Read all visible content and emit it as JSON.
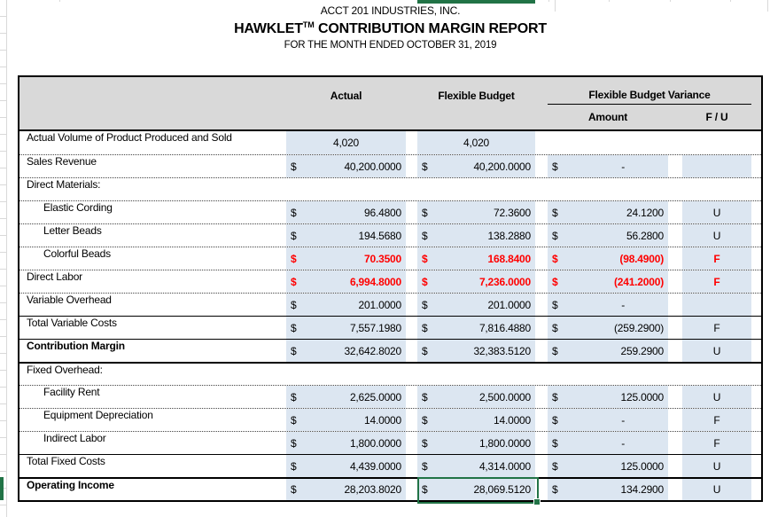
{
  "title_block": {
    "company": "ACCT 201 INDUSTRIES, INC.",
    "product": "HAWKLET",
    "trademark": "TM",
    "report_suffix": " CONTRIBUTION MARGIN REPORT",
    "period": "FOR THE MONTH ENDED OCTOBER 31, 2019"
  },
  "table_header": {
    "actual": "Actual",
    "flexible_budget": "Flexible Budget",
    "variance_group": "Flexible Budget Variance",
    "amount": "Amount",
    "f_u": "F / U"
  },
  "colors": {
    "header_fill": "#D9D9D9",
    "cell_fill": "#DCE6F1",
    "unfavorable_red": "#FF0000",
    "excel_selection_green": "#217346"
  },
  "selection": {
    "selected_row": "operating-income",
    "selected_column": "flexible-budget",
    "selected_value": "28,069.5120"
  },
  "rows": [
    {
      "name": "actual-volume",
      "label": "Actual Volume of Product Produced and Sold",
      "indent": false,
      "bold": false,
      "red": false,
      "border": "none",
      "actual": {
        "val": "4,020",
        "center": true
      },
      "flex": {
        "val": "4,020",
        "center": true
      },
      "amount": null,
      "fu": null,
      "shade": {
        "actual": true,
        "flex": true,
        "amount": false,
        "fu": false
      }
    },
    {
      "name": "sales-revenue",
      "label": "Sales Revenue",
      "indent": false,
      "bold": false,
      "red": false,
      "border": "dotted",
      "actual": {
        "cur": "$",
        "val": "40,200.0000"
      },
      "flex": {
        "cur": "$",
        "val": "40,200.0000"
      },
      "amount": {
        "cur": "$",
        "val": "-",
        "dash": true
      },
      "fu": "",
      "shade": {
        "actual": true,
        "flex": true,
        "amount": true,
        "fu": true
      }
    },
    {
      "name": "direct-materials-header",
      "label": "Direct Materials:",
      "indent": false,
      "bold": false,
      "red": false,
      "border": "dotted",
      "actual": null,
      "flex": null,
      "amount": null,
      "fu": null,
      "shade": {
        "actual": false,
        "flex": false,
        "amount": false,
        "fu": false
      }
    },
    {
      "name": "elastic-cording",
      "label": "Elastic Cording",
      "indent": true,
      "bold": false,
      "red": false,
      "border": "dotted",
      "actual": {
        "cur": "$",
        "val": "96.4800"
      },
      "flex": {
        "cur": "$",
        "val": "72.3600"
      },
      "amount": {
        "cur": "$",
        "val": "24.1200"
      },
      "fu": "U",
      "shade": {
        "actual": true,
        "flex": true,
        "amount": true,
        "fu": true
      }
    },
    {
      "name": "letter-beads",
      "label": "Letter Beads",
      "indent": true,
      "bold": false,
      "red": false,
      "border": "dotted",
      "actual": {
        "cur": "$",
        "val": "194.5680"
      },
      "flex": {
        "cur": "$",
        "val": "138.2880"
      },
      "amount": {
        "cur": "$",
        "val": "56.2800"
      },
      "fu": "U",
      "shade": {
        "actual": true,
        "flex": true,
        "amount": true,
        "fu": true
      }
    },
    {
      "name": "colorful-beads",
      "label": "Colorful Beads",
      "indent": true,
      "bold": false,
      "red": true,
      "border": "dotted",
      "actual": {
        "cur": "$",
        "val": "70.3500"
      },
      "flex": {
        "cur": "$",
        "val": "168.8400"
      },
      "amount": {
        "cur": "$",
        "val": "(98.4900)"
      },
      "fu": "F",
      "shade": {
        "actual": true,
        "flex": true,
        "amount": true,
        "fu": true
      }
    },
    {
      "name": "direct-labor",
      "label": "Direct Labor",
      "indent": false,
      "bold": false,
      "red": true,
      "border": "dotted",
      "actual": {
        "cur": "$",
        "val": "6,994.8000"
      },
      "flex": {
        "cur": "$",
        "val": "7,236.0000"
      },
      "amount": {
        "cur": "$",
        "val": "(241.2000)"
      },
      "fu": "F",
      "shade": {
        "actual": true,
        "flex": true,
        "amount": true,
        "fu": true
      }
    },
    {
      "name": "variable-overhead",
      "label": "Variable Overhead",
      "indent": false,
      "bold": false,
      "red": false,
      "border": "dotted",
      "actual": {
        "cur": "$",
        "val": "201.0000"
      },
      "flex": {
        "cur": "$",
        "val": "201.0000"
      },
      "amount": {
        "cur": "$",
        "val": "-",
        "dash": true
      },
      "fu": "",
      "shade": {
        "actual": true,
        "flex": true,
        "amount": true,
        "fu": true
      }
    },
    {
      "name": "total-variable-costs",
      "label": "Total Variable Costs",
      "indent": false,
      "bold": false,
      "red": false,
      "border": "solid",
      "actual": {
        "cur": "$",
        "val": "7,557.1980"
      },
      "flex": {
        "cur": "$",
        "val": "7,816.4880"
      },
      "amount": {
        "cur": "$",
        "val": "(259.2900)"
      },
      "fu": "F",
      "shade": {
        "actual": true,
        "flex": true,
        "amount": true,
        "fu": true
      }
    },
    {
      "name": "contribution-margin",
      "label": "Contribution Margin",
      "indent": false,
      "bold": true,
      "red": false,
      "border": "solid",
      "actual": {
        "cur": "$",
        "val": "32,642.8020"
      },
      "flex": {
        "cur": "$",
        "val": "32,383.5120"
      },
      "amount": {
        "cur": "$",
        "val": "259.2900"
      },
      "fu": "U",
      "shade": {
        "actual": true,
        "flex": true,
        "amount": true,
        "fu": true
      }
    },
    {
      "name": "fixed-overhead-header",
      "label": "Fixed Overhead:",
      "indent": false,
      "bold": false,
      "red": false,
      "border": "thick",
      "actual": null,
      "flex": null,
      "amount": null,
      "fu": null,
      "shade": {
        "actual": false,
        "flex": false,
        "amount": false,
        "fu": false
      }
    },
    {
      "name": "facility-rent",
      "label": "Facility Rent",
      "indent": true,
      "bold": false,
      "red": false,
      "border": "dotted",
      "actual": {
        "cur": "$",
        "val": "2,625.0000"
      },
      "flex": {
        "cur": "$",
        "val": "2,500.0000"
      },
      "amount": {
        "cur": "$",
        "val": "125.0000"
      },
      "fu": "U",
      "shade": {
        "actual": true,
        "flex": true,
        "amount": true,
        "fu": true
      }
    },
    {
      "name": "equipment-depreciation",
      "label": "Equipment Depreciation",
      "indent": true,
      "bold": false,
      "red": false,
      "border": "dotted",
      "actual": {
        "cur": "$",
        "val": "14.0000"
      },
      "flex": {
        "cur": "$",
        "val": "14.0000"
      },
      "amount": {
        "cur": "$",
        "val": "-",
        "dash": true
      },
      "fu": "F",
      "shade": {
        "actual": true,
        "flex": true,
        "amount": true,
        "fu": true
      }
    },
    {
      "name": "indirect-labor",
      "label": "Indirect Labor",
      "indent": true,
      "bold": false,
      "red": false,
      "border": "dotted",
      "actual": {
        "cur": "$",
        "val": "1,800.0000"
      },
      "flex": {
        "cur": "$",
        "val": "1,800.0000"
      },
      "amount": {
        "cur": "$",
        "val": "-",
        "dash": true
      },
      "fu": "F",
      "shade": {
        "actual": true,
        "flex": true,
        "amount": true,
        "fu": true
      }
    },
    {
      "name": "total-fixed-costs",
      "label": "Total Fixed Costs",
      "indent": false,
      "bold": false,
      "red": false,
      "border": "solid",
      "actual": {
        "cur": "$",
        "val": "4,439.0000"
      },
      "flex": {
        "cur": "$",
        "val": "4,314.0000"
      },
      "amount": {
        "cur": "$",
        "val": "125.0000"
      },
      "fu": "U",
      "shade": {
        "actual": true,
        "flex": true,
        "amount": true,
        "fu": true
      }
    },
    {
      "name": "operating-income",
      "label": "Operating Income",
      "indent": false,
      "bold": true,
      "red": false,
      "border": "thick",
      "actual": {
        "cur": "$",
        "val": "28,203.8020"
      },
      "flex": {
        "cur": "$",
        "val": "28,069.5120"
      },
      "amount": {
        "cur": "$",
        "val": "134.2900"
      },
      "fu": "U",
      "shade": {
        "actual": true,
        "flex": true,
        "amount": true,
        "fu": true
      }
    }
  ]
}
